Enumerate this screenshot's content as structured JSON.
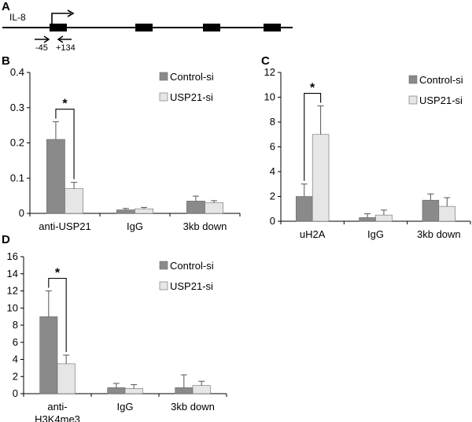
{
  "colors": {
    "control": "#8a8a8a",
    "usp21": "#e6e6e6",
    "axis": "#000000",
    "error": "#555555"
  },
  "schematic": {
    "panel": "A",
    "gene_label": "IL-8",
    "primer_left": "-45",
    "primer_right": "+134"
  },
  "chart_data": [
    {
      "panel": "B",
      "type": "bar",
      "categories": [
        "anti-USP21",
        "IgG",
        "3kb down"
      ],
      "series": [
        {
          "name": "Control-si",
          "values": [
            0.21,
            0.01,
            0.035
          ],
          "errors": [
            0.05,
            0.004,
            0.014
          ]
        },
        {
          "name": "USP21-si",
          "values": [
            0.07,
            0.013,
            0.03
          ],
          "errors": [
            0.018,
            0.004,
            0.006
          ]
        }
      ],
      "ylim": [
        0,
        0.4
      ],
      "yticks": [
        "0",
        "0.1",
        "0.2",
        "0.3",
        "0.4"
      ],
      "significance": [
        {
          "category": 0,
          "label": "*"
        }
      ]
    },
    {
      "panel": "C",
      "type": "bar",
      "categories": [
        "uH2A",
        "IgG",
        "3kb down"
      ],
      "series": [
        {
          "name": "Control-si",
          "values": [
            2.0,
            0.3,
            1.7
          ],
          "errors": [
            1.0,
            0.3,
            0.5
          ]
        },
        {
          "name": "USP21-si",
          "values": [
            7.0,
            0.5,
            1.2
          ],
          "errors": [
            2.3,
            0.4,
            0.7
          ]
        }
      ],
      "ylim": [
        0,
        12
      ],
      "yticks": [
        "0",
        "2",
        "4",
        "6",
        "8",
        "10",
        "12"
      ],
      "significance": [
        {
          "category": 0,
          "label": "*"
        }
      ]
    },
    {
      "panel": "D",
      "type": "bar",
      "categories": [
        [
          "anti-",
          "H3K4me3"
        ],
        [
          "IgG"
        ],
        [
          "3kb down"
        ]
      ],
      "series": [
        {
          "name": "Control-si",
          "values": [
            9.0,
            0.7,
            0.7
          ],
          "errors": [
            3.0,
            0.5,
            1.5
          ]
        },
        {
          "name": "USP21-si",
          "values": [
            3.5,
            0.6,
            0.95
          ],
          "errors": [
            1.0,
            0.45,
            0.5
          ]
        }
      ],
      "ylim": [
        0,
        16
      ],
      "yticks": [
        "0",
        "2",
        "4",
        "6",
        "8",
        "10",
        "12",
        "14",
        "16"
      ],
      "significance": [
        {
          "category": 0,
          "label": "*"
        }
      ]
    }
  ]
}
